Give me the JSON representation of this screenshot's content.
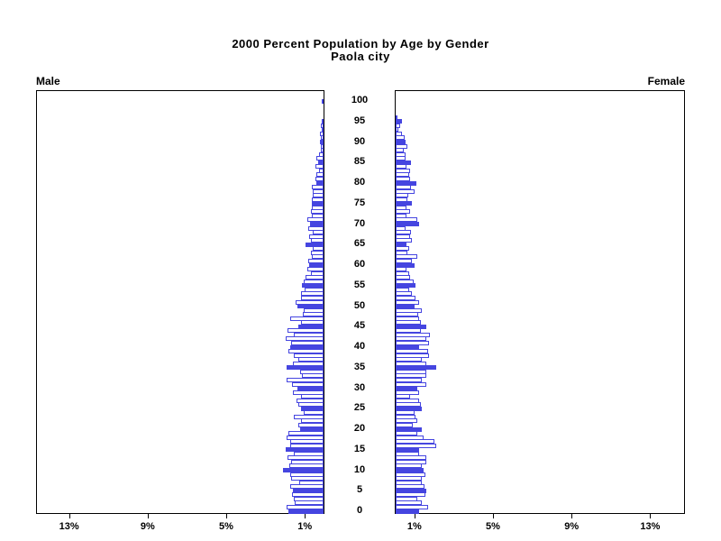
{
  "title": {
    "line1": "2000 Percent Population by Age by Gender",
    "line2": "Paola city"
  },
  "panel_labels": {
    "male": "Male",
    "female": "Female"
  },
  "axis": {
    "pct_tick_labels": [
      "13%",
      "9%",
      "5%",
      "1%"
    ],
    "pct_tick_values": [
      13,
      9,
      5,
      1
    ],
    "age_tick_labels": [
      "0",
      "5",
      "10",
      "15",
      "20",
      "25",
      "30",
      "35",
      "40",
      "45",
      "50",
      "55",
      "60",
      "65",
      "70",
      "75",
      "80",
      "85",
      "90",
      "95",
      "100"
    ],
    "age_tick_step": 5,
    "age_min": 0,
    "age_max": 100
  },
  "colors": {
    "bar_fill": "#4545e0",
    "bar_outline": "#4545e0",
    "axis": "#000000",
    "background": "#ffffff",
    "text": "#000000"
  },
  "chart_data": {
    "type": "bar",
    "subtype": "population-pyramid",
    "title": "2000 Percent Population by Age by Gender",
    "subtitle": "Paola city",
    "unit": "percent of total population",
    "x_axis": "percent, 0 at center increasing outward to each side",
    "y_axis": "single year of age, 0 (bottom) to 100 (top)",
    "xlim_each_side": [
      0,
      14.7
    ],
    "x_tick_values": [
      1,
      5,
      9,
      13
    ],
    "highlight_every": 5,
    "highlight_note": "bars at ages divisible by 5 are solid blue; other ages are white with blue outline",
    "series": [
      {
        "name": "Male",
        "side": "left",
        "values": [
          1.8,
          1.9,
          1.48,
          1.51,
          1.6,
          1.54,
          1.69,
          1.23,
          1.65,
          1.72,
          2.05,
          1.75,
          1.65,
          1.85,
          1.5,
          1.95,
          1.72,
          1.7,
          1.88,
          1.78,
          1.18,
          1.3,
          1.15,
          1.5,
          1.0,
          1.15,
          1.28,
          1.4,
          1.14,
          1.55,
          1.35,
          1.6,
          1.9,
          1.1,
          1.2,
          1.9,
          1.54,
          1.3,
          1.5,
          1.77,
          1.72,
          1.65,
          1.92,
          1.5,
          1.85,
          1.3,
          1.15,
          1.7,
          1.05,
          1.03,
          1.34,
          1.42,
          1.15,
          1.15,
          0.95,
          1.1,
          1.0,
          0.92,
          0.66,
          0.85,
          0.72,
          0.8,
          0.62,
          0.66,
          0.57,
          0.92,
          0.66,
          0.72,
          0.57,
          0.77,
          0.69,
          0.82,
          0.62,
          0.66,
          0.62,
          0.58,
          0.62,
          0.55,
          0.54,
          0.6,
          0.35,
          0.42,
          0.35,
          0.23,
          0.42,
          0.26,
          0.35,
          0.23,
          0.12,
          0.15,
          0.18,
          0.12,
          0.2,
          0.05,
          0.15,
          0.1,
          0,
          0,
          0,
          0,
          0.09
        ]
      },
      {
        "name": "Female",
        "side": "right",
        "values": [
          1.17,
          1.66,
          1.35,
          1.1,
          1.52,
          1.55,
          1.45,
          1.32,
          1.35,
          1.5,
          1.4,
          1.32,
          1.55,
          1.58,
          1.2,
          1.2,
          2.06,
          1.97,
          1.4,
          1.12,
          1.32,
          0.86,
          1.12,
          1.0,
          0.94,
          1.35,
          1.3,
          1.2,
          0.74,
          1.17,
          1.12,
          1.55,
          1.32,
          1.55,
          1.55,
          2.06,
          1.55,
          1.32,
          1.7,
          1.66,
          1.2,
          1.7,
          1.55,
          1.75,
          1.3,
          1.58,
          1.3,
          1.2,
          1.13,
          1.32,
          0.98,
          1.17,
          1.0,
          0.83,
          0.7,
          1.0,
          0.9,
          0.74,
          0.68,
          0.55,
          0.98,
          0.83,
          1.1,
          0.6,
          0.7,
          0.55,
          0.83,
          0.74,
          0.78,
          0.52,
          1.2,
          1.1,
          0.55,
          0.74,
          0.55,
          0.83,
          0.6,
          0.65,
          0.98,
          0.78,
          1.05,
          0.74,
          0.7,
          0.74,
          0.55,
          0.78,
          0.52,
          0.48,
          0.4,
          0.58,
          0.52,
          0.46,
          0.34,
          0.15,
          0.22,
          0.34,
          0.08,
          0,
          0,
          0,
          0
        ]
      }
    ]
  }
}
